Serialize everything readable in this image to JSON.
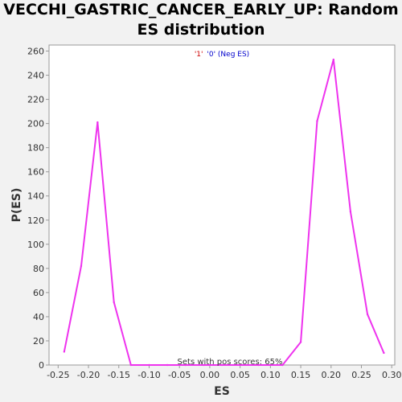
{
  "chart_data": {
    "type": "line",
    "title_line1": "VECCHI_GASTRIC_CANCER_EARLY_UP: Random",
    "title_line2": "ES distribution",
    "xlabel": "ES",
    "ylabel": "P(ES)",
    "xlim": [
      -0.265,
      0.305
    ],
    "ylim": [
      0,
      265
    ],
    "xticks": [
      -0.25,
      -0.2,
      -0.15,
      -0.1,
      -0.05,
      0.0,
      0.05,
      0.1,
      0.15,
      0.2,
      0.25,
      0.3
    ],
    "xtick_labels": [
      "-0.25",
      "-0.20",
      "-0.15",
      "-0.10",
      "-0.05",
      "0.00",
      "0.05",
      "0.10",
      "0.15",
      "0.20",
      "0.25",
      "0.30"
    ],
    "yticks": [
      0,
      20,
      40,
      60,
      80,
      100,
      120,
      140,
      160,
      180,
      200,
      220,
      240,
      260
    ],
    "grid": true,
    "legend": {
      "position": "top-center",
      "items": [
        {
          "text": "'1'",
          "color": "#cc0000"
        },
        {
          "text": "'0' (Neg ES)",
          "color": "#0000cc"
        }
      ]
    },
    "annotation": "Sets with pos scores: 65%",
    "line_color": "#ee33ee",
    "series": [
      {
        "x": [
          -0.24,
          -0.212,
          -0.185,
          -0.158,
          -0.13,
          -0.1,
          -0.07,
          -0.04,
          -0.01,
          0.02,
          0.05,
          0.08,
          0.12,
          0.15,
          0.177,
          0.204,
          0.232,
          0.26,
          0.287
        ],
        "y": [
          11,
          82,
          201,
          52,
          0,
          0,
          0,
          0,
          0,
          0,
          0,
          0,
          0,
          19,
          202,
          253,
          127,
          42,
          10
        ]
      }
    ]
  }
}
